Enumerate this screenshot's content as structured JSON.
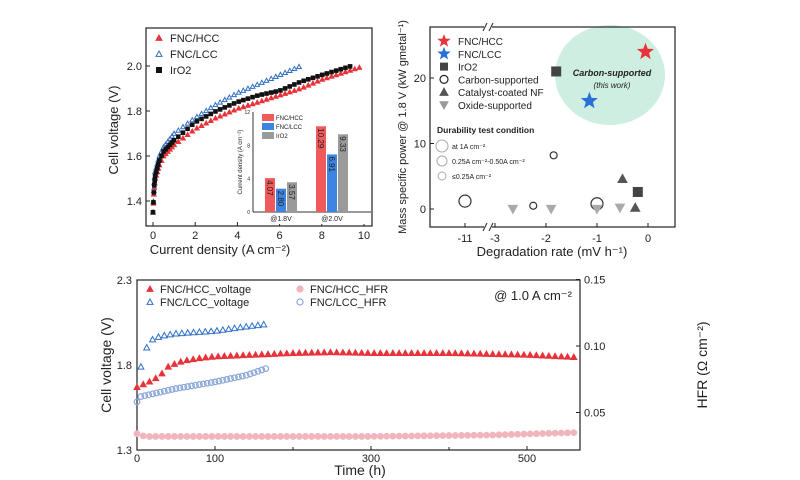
{
  "chart_data": [
    {
      "type": "scatter",
      "ylabel": "Cell voltage (V)",
      "xlabel": "Current density (A cm⁻²)",
      "xlim": [
        -0.4,
        10.5
      ],
      "ylim": [
        1.33,
        2.14
      ],
      "xticks": [
        "0",
        "2",
        "4",
        "6",
        "8",
        "10"
      ],
      "yticks": [
        "1.4",
        "1.6",
        "1.8",
        "2.0"
      ],
      "legend_position": "top-left",
      "series": [
        {
          "name": "FNC/HCC",
          "marker": "filled-triangle",
          "color": "#e8333a",
          "points": [
            [
              0,
              1.35
            ],
            [
              0.05,
              1.45
            ],
            [
              0.1,
              1.5
            ],
            [
              0.3,
              1.56
            ],
            [
              0.5,
              1.6
            ],
            [
              1,
              1.65
            ],
            [
              2,
              1.72
            ],
            [
              3,
              1.77
            ],
            [
              4,
              1.81
            ],
            [
              5,
              1.84
            ],
            [
              6,
              1.87
            ],
            [
              7,
              1.9
            ],
            [
              8,
              1.94
            ],
            [
              9,
              1.97
            ],
            [
              10,
              2.0
            ]
          ]
        },
        {
          "name": "FNC/LCC",
          "marker": "open-triangle",
          "color": "#2f6fc4",
          "points": [
            [
              0,
              1.35
            ],
            [
              0.05,
              1.47
            ],
            [
              0.1,
              1.53
            ],
            [
              0.3,
              1.6
            ],
            [
              0.5,
              1.64
            ],
            [
              1,
              1.7
            ],
            [
              2,
              1.77
            ],
            [
              3,
              1.83
            ],
            [
              4,
              1.88
            ],
            [
              5,
              1.92
            ],
            [
              6,
              1.96
            ],
            [
              7,
              2.0
            ]
          ]
        },
        {
          "name": "IrO2",
          "marker": "filled-square",
          "color": "#111111",
          "points": [
            [
              0,
              1.35
            ],
            [
              0.05,
              1.46
            ],
            [
              0.1,
              1.51
            ],
            [
              0.3,
              1.58
            ],
            [
              0.5,
              1.62
            ],
            [
              1,
              1.67
            ],
            [
              2,
              1.75
            ],
            [
              3,
              1.8
            ],
            [
              4,
              1.84
            ],
            [
              5,
              1.87
            ],
            [
              6,
              1.89
            ],
            [
              7,
              1.93
            ],
            [
              8,
              1.96
            ],
            [
              9.4,
              2.0
            ]
          ]
        }
      ]
    },
    {
      "type": "bar",
      "ylabel": "Current density (A cm⁻²)",
      "ylim": [
        0,
        12
      ],
      "yticks": [
        "0",
        "4",
        "8",
        "12"
      ],
      "categories": [
        "@1.8V",
        "@2.0V"
      ],
      "series": [
        {
          "name": "FNC/HCC",
          "color": "#f05a5a",
          "values": [
            4.07,
            10.29
          ]
        },
        {
          "name": "FNC/LCC",
          "color": "#3d85e0",
          "values": [
            2.8,
            6.91
          ]
        },
        {
          "name": "IrO2",
          "color": "#9a9a9a",
          "values": [
            3.57,
            9.33
          ]
        }
      ]
    },
    {
      "type": "scatter",
      "ylabel": "Mass specific power @ 1.8 V (kW gmetal⁻¹)",
      "xlabel": "Degradation rate (mV h⁻¹)",
      "xticks": [
        "-11",
        "-3",
        "-2",
        "-1",
        "0"
      ],
      "yticks": [
        "0",
        "10",
        "20"
      ],
      "ylim": [
        -2.5,
        28
      ],
      "x_axis_break": true,
      "legend": [
        "FNC/HCC",
        "FNC/LCC",
        "IrO2",
        "Carbon-supported",
        "Catalyst-coated NF",
        "Oxide-supported"
      ],
      "durability_title": "Durability test condition",
      "durability_legend": [
        "at 1A cm⁻²",
        "0.25A cm⁻²-0.50A cm⁻²",
        "≤0.25A cm⁻²"
      ],
      "annotation": {
        "title": "Carbon-supported",
        "subtitle": "(this work)"
      },
      "points": [
        {
          "group": "FNC/HCC",
          "x": -0.05,
          "y": 24,
          "color": "#e8333a"
        },
        {
          "group": "FNC/LCC",
          "x": -1.15,
          "y": 16.5,
          "color": "#2870d8"
        },
        {
          "group": "IrO2",
          "x": -1.8,
          "y": 21
        },
        {
          "group": "IrO2",
          "x": -0.2,
          "y": 2.6
        },
        {
          "group": "Carbon-supported",
          "x": -11,
          "y": 1.2,
          "size": "large"
        },
        {
          "group": "Carbon-supported",
          "x": -2.25,
          "y": 0.5,
          "size": "small"
        },
        {
          "group": "Carbon-supported",
          "x": -1.85,
          "y": 8.2,
          "size": "small"
        },
        {
          "group": "Carbon-supported",
          "x": -1.0,
          "y": 0.8,
          "size": "large"
        },
        {
          "group": "Catalyst-coated NF",
          "x": -0.5,
          "y": 4.6
        },
        {
          "group": "Catalyst-coated NF",
          "x": -0.25,
          "y": 0.2
        },
        {
          "group": "Oxide-supported",
          "x": -2.65,
          "y": 0
        },
        {
          "group": "Oxide-supported",
          "x": -1.9,
          "y": 0
        },
        {
          "group": "Oxide-supported",
          "x": -1.0,
          "y": 0
        },
        {
          "group": "Oxide-supported",
          "x": -0.55,
          "y": 0.2
        }
      ]
    },
    {
      "type": "scatter",
      "ylabel": "Cell voltage (V)",
      "y2label": "HFR (Ω cm⁻²)",
      "xlabel": "Time (h)",
      "xlim": [
        0,
        567
      ],
      "ylim": [
        1.3,
        2.3
      ],
      "y2lim": [
        0.025,
        0.15
      ],
      "xticks": [
        "0",
        "100",
        "300",
        "500"
      ],
      "yticks": [
        "1.3",
        "1.8",
        "2.3"
      ],
      "y2ticks": [
        "0.05",
        "0.10",
        "0.15"
      ],
      "annotation": "@ 1.0 A cm⁻²",
      "series": [
        {
          "name": "FNC/HCC_voltage",
          "axis": "left",
          "color": "#e8333a",
          "points": [
            [
              0,
              1.67
            ],
            [
              10,
              1.69
            ],
            [
              20,
              1.71
            ],
            [
              30,
              1.74
            ],
            [
              40,
              1.79
            ],
            [
              50,
              1.81
            ],
            [
              60,
              1.825
            ],
            [
              80,
              1.84
            ],
            [
              100,
              1.85
            ],
            [
              150,
              1.86
            ],
            [
              200,
              1.87
            ],
            [
              250,
              1.875
            ],
            [
              300,
              1.87
            ],
            [
              400,
              1.87
            ],
            [
              500,
              1.86
            ],
            [
              567,
              1.845
            ]
          ]
        },
        {
          "name": "FNC/LCC_voltage",
          "axis": "left",
          "color": "#2f6fc4",
          "points": [
            [
              5,
              1.79
            ],
            [
              13,
              1.91
            ],
            [
              20,
              1.95
            ],
            [
              30,
              1.97
            ],
            [
              50,
              1.985
            ],
            [
              100,
              2.0
            ],
            [
              130,
              2.02
            ],
            [
              165,
              2.04
            ]
          ]
        },
        {
          "name": "FNC/HCC_HFR",
          "axis": "right",
          "color": "#e8a0a8",
          "points": [
            [
              0,
              0.034
            ],
            [
              10,
              0.032
            ],
            [
              100,
              0.032
            ],
            [
              300,
              0.032
            ],
            [
              450,
              0.033
            ],
            [
              567,
              0.035
            ]
          ]
        },
        {
          "name": "FNC/LCC_HFR",
          "axis": "right",
          "color": "#8aa6d8",
          "points": [
            [
              0,
              0.058
            ],
            [
              5,
              0.062
            ],
            [
              20,
              0.064
            ],
            [
              50,
              0.068
            ],
            [
              100,
              0.073
            ],
            [
              140,
              0.078
            ],
            [
              165,
              0.083
            ]
          ]
        }
      ]
    }
  ]
}
